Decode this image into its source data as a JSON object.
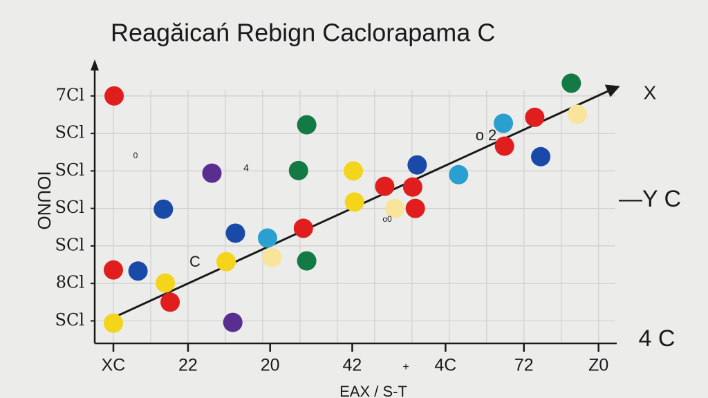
{
  "chart_data": {
    "type": "scatter",
    "title": "Reagăicań Rebign Caclorapama C",
    "ylabel": "IOUNO",
    "xlabel": "EAX / S-T",
    "x": [
      0.02,
      0,
      0,
      0.66,
      1.34,
      1.39,
      1.52,
      2.64,
      3.02,
      3.2,
      3.27,
      4.13,
      4.25,
      4.96,
      5.18,
      5.18,
      5.09,
      6.43,
      6.46,
      7.27,
      7.54,
      8.02,
      8.09,
      8.14,
      9.25,
      10.45,
      10.48,
      11.29,
      11.45,
      12.27,
      12.43
    ],
    "y": [
      6.0,
      1.36,
      -0.06,
      1.33,
      2.98,
      1.01,
      0.5,
      3.94,
      1.58,
      -0.04,
      2.34,
      2.21,
      1.69,
      4.01,
      5.23,
      1.6,
      2.47,
      4.0,
      3.17,
      3.59,
      3.0,
      3.57,
      3.0,
      4.16,
      3.9,
      5.27,
      4.66,
      5.43,
      4.38,
      6.34,
      5.51
    ],
    "colors": [
      "#e01e1e",
      "#e01e1e",
      "#f5d41c",
      "#1a4aa8",
      "#1a4aa8",
      "#f5d41c",
      "#e01e1e",
      "#5a2d91",
      "#f5d41c",
      "#5a2d91",
      "#1a4aa8",
      "#2a9fd0",
      "#f8e49a",
      "#137a45",
      "#137a45",
      "#137a45",
      "#e01e1e",
      "#f5d41c",
      "#f5d41c",
      "#e01e1e",
      "#f8e49a",
      "#e01e1e",
      "#e01e1e",
      "#1a4aa8",
      "#2a9fd0",
      "#2a9fd0",
      "#e01e1e",
      "#e01e1e",
      "#1a4aa8",
      "#137a45",
      "#f8e49a"
    ],
    "trend": {
      "x": [
        0.05,
        13.39
      ],
      "y": [
        0.11,
        6.19
      ],
      "color": "#1a1a1a"
    },
    "xlim": [
      -0.5,
      13.45
    ],
    "ylim": [
      -0.6,
      6.9
    ],
    "xticks": [
      {
        "value": 0,
        "label": "XC"
      },
      {
        "value": 2,
        "label": "22"
      },
      {
        "value": 4.2,
        "label": "20"
      },
      {
        "value": 6.4,
        "label": "42"
      },
      {
        "value": 8.9,
        "label": "4C"
      },
      {
        "value": 11,
        "label": "72"
      },
      {
        "value": 13,
        "label": "Z0"
      }
    ],
    "yticks": [
      {
        "value": 0,
        "label": "SCl"
      },
      {
        "value": 1,
        "label": "8Cl"
      },
      {
        "value": 2,
        "label": "SCl"
      },
      {
        "value": 3,
        "label": "SCl"
      },
      {
        "value": 4,
        "label": "SCl"
      },
      {
        "value": 5,
        "label": "SCl"
      },
      {
        "value": 6,
        "label": "7Cl"
      }
    ],
    "grid": true,
    "annotations": [
      "X",
      "—Y C",
      "4 C",
      "o 2",
      "C",
      "4",
      "0",
      "o0",
      "+"
    ]
  }
}
